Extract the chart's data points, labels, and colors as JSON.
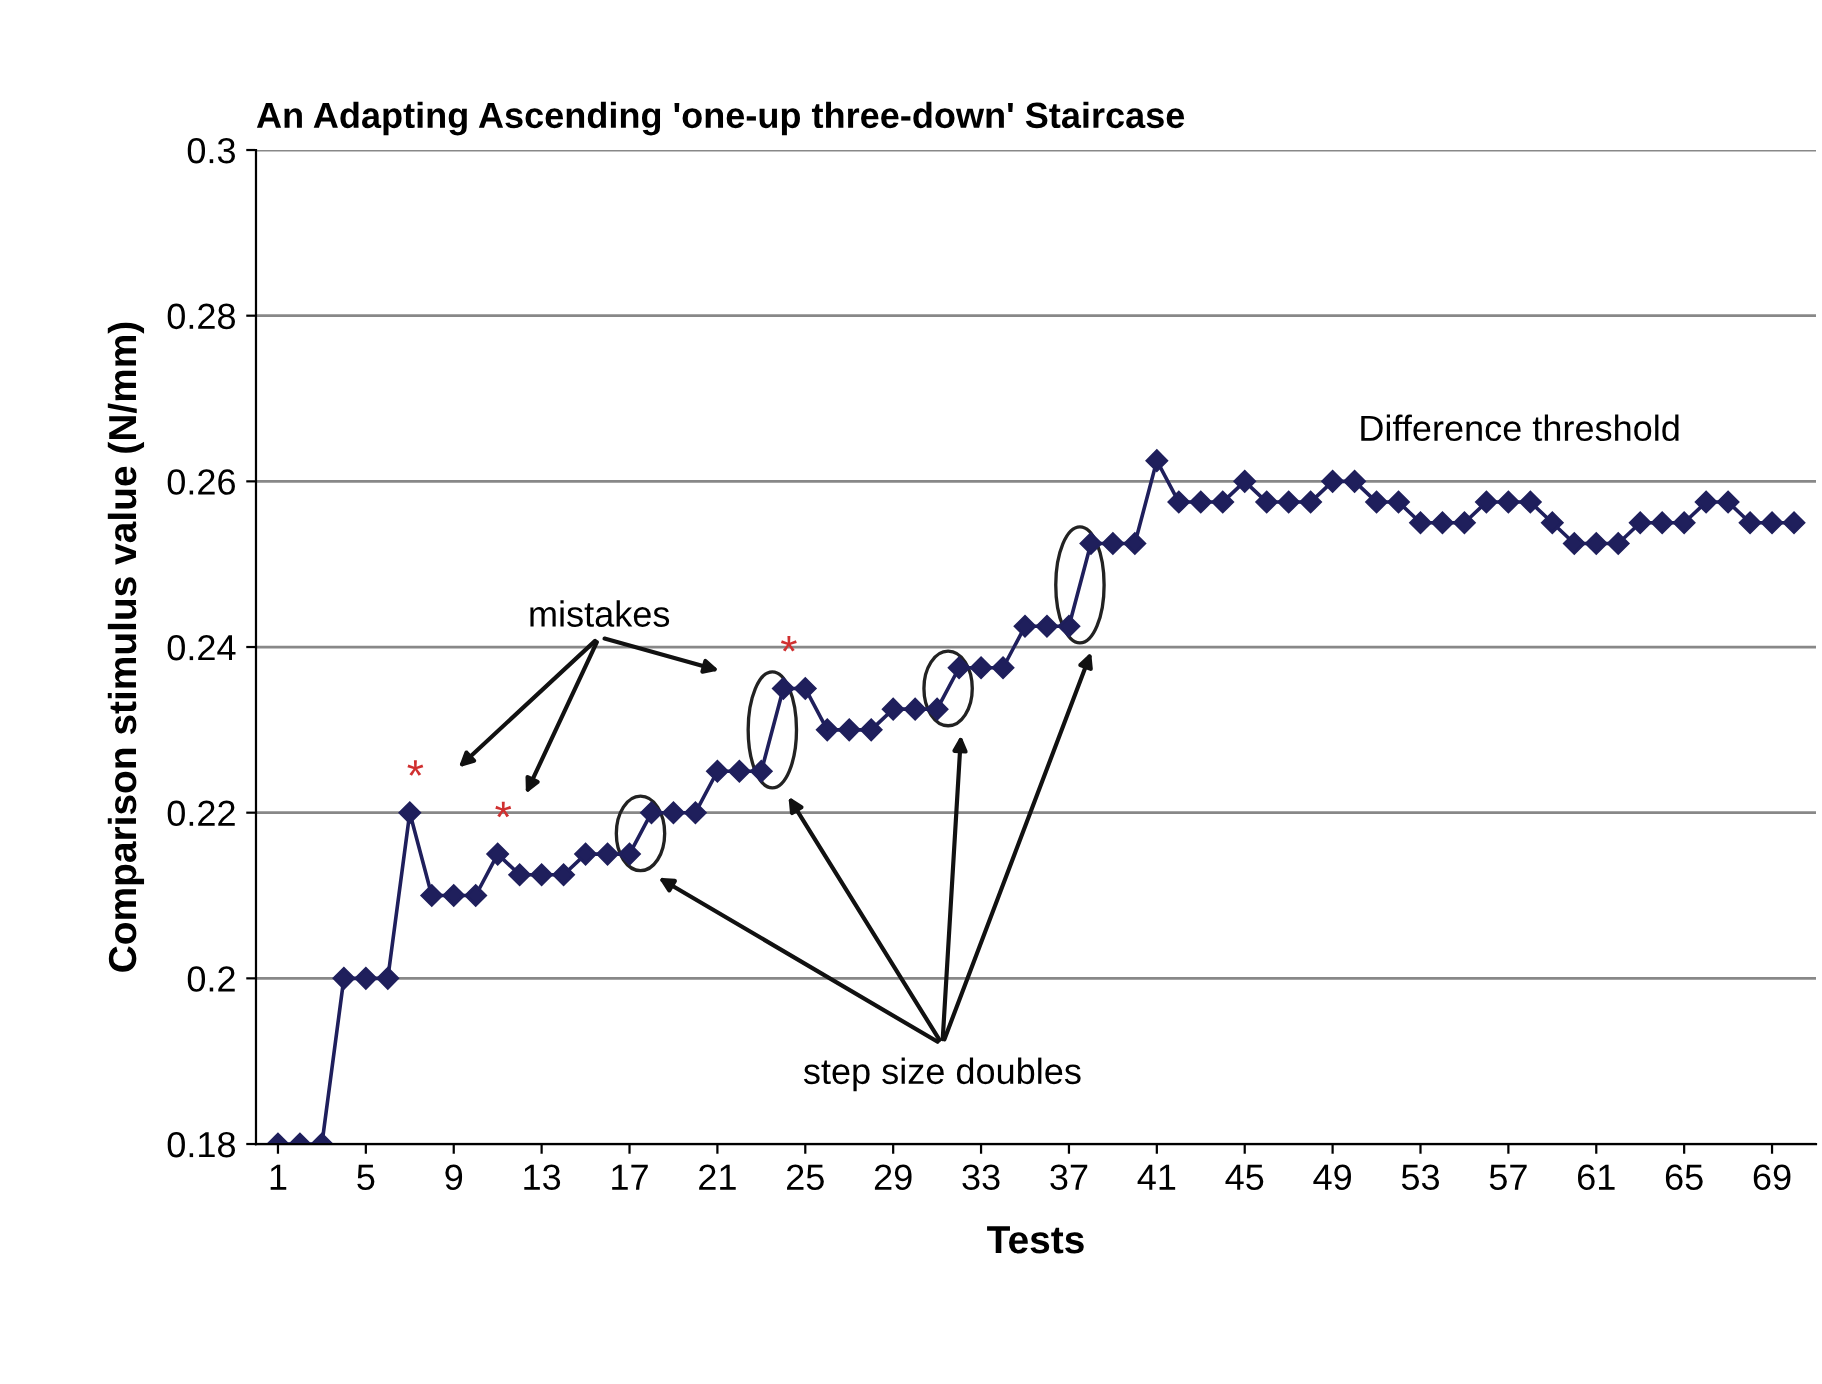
{
  "chart_data": {
    "type": "line",
    "title": "An Adapting Ascending 'one-up three-down' Staircase",
    "xlabel": "Tests",
    "ylabel": "Comparison stimulus value (N/mm)",
    "x": [
      1,
      2,
      3,
      4,
      5,
      6,
      7,
      8,
      9,
      10,
      11,
      12,
      13,
      14,
      15,
      16,
      17,
      18,
      19,
      20,
      21,
      22,
      23,
      24,
      25,
      26,
      27,
      28,
      29,
      30,
      31,
      32,
      33,
      34,
      35,
      36,
      37,
      38,
      39,
      40,
      41,
      42,
      43,
      44,
      45,
      46,
      47,
      48,
      49,
      50,
      51,
      52,
      53,
      54,
      55,
      56,
      57,
      58,
      59,
      60,
      61,
      62,
      63,
      64,
      65,
      66,
      67,
      68,
      69,
      70
    ],
    "series": [
      {
        "color": "#1f1f5c",
        "values": [
          0.18,
          0.18,
          0.18,
          0.2,
          0.2,
          0.2,
          0.22,
          0.21,
          0.21,
          0.21,
          0.215,
          0.2125,
          0.2125,
          0.2125,
          0.215,
          0.215,
          0.215,
          0.22,
          0.22,
          0.22,
          0.225,
          0.225,
          0.225,
          0.235,
          0.235,
          0.23,
          0.23,
          0.23,
          0.2325,
          0.2325,
          0.2325,
          0.2375,
          0.2375,
          0.2375,
          0.2425,
          0.2425,
          0.2425,
          0.2525,
          0.2525,
          0.2525,
          0.2625,
          0.2575,
          0.2575,
          0.2575,
          0.26,
          0.2575,
          0.2575,
          0.2575,
          0.26,
          0.26,
          0.2575,
          0.2575,
          0.255,
          0.255,
          0.255,
          0.2575,
          0.2575,
          0.2575,
          0.255,
          0.2525,
          0.2525,
          0.2525,
          0.255,
          0.255,
          0.255,
          0.2575,
          0.2575,
          0.255,
          0.255,
          0.255
        ]
      }
    ],
    "xlim": [
      0,
      71
    ],
    "xticks": [
      1,
      5,
      9,
      13,
      17,
      21,
      25,
      29,
      33,
      37,
      41,
      45,
      49,
      53,
      57,
      61,
      65,
      69
    ],
    "ylim": [
      0.18,
      0.3
    ],
    "yticks": [
      0.18,
      0.2,
      0.22,
      0.24,
      0.26,
      0.28,
      0.3
    ],
    "grid": "y",
    "legend": false,
    "marker": "diamond",
    "line_style": "solid",
    "annotations": [
      {
        "text": "*",
        "x": 7,
        "y": 0.22
      },
      {
        "text": "*",
        "x": 11,
        "y": 0.215
      },
      {
        "text": "*",
        "x": 24,
        "y": 0.235
      },
      "mistakes",
      "step size doubles",
      "Difference threshold"
    ]
  }
}
